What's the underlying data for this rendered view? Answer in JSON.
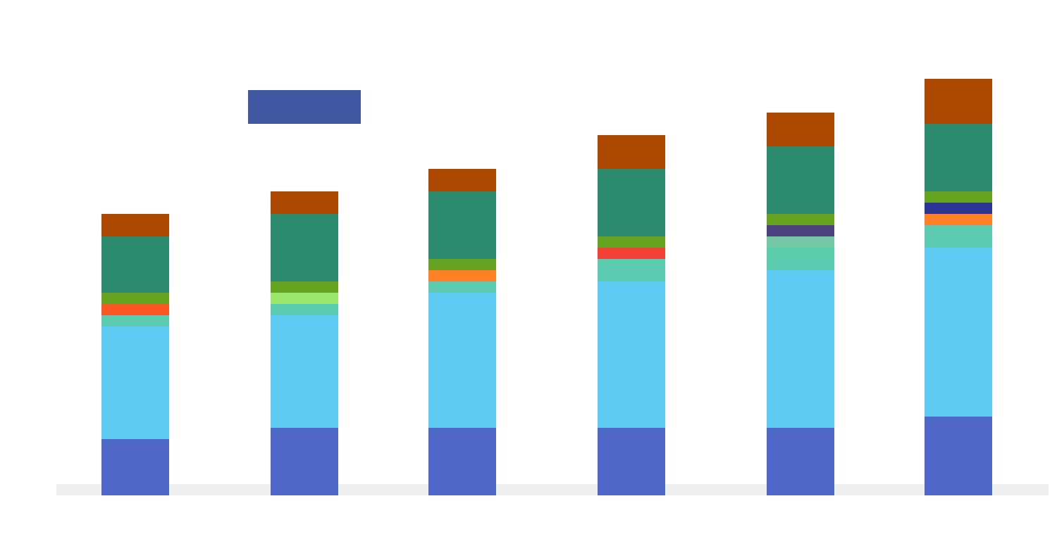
{
  "chart_data": {
    "type": "bar",
    "stacked": true,
    "title": "",
    "xlabel": "",
    "ylabel": "",
    "categories": [
      "",
      "",
      "",
      "",
      "",
      ""
    ],
    "ylim": [
      0,
      37
    ],
    "grid": false,
    "legend_position": "top-left",
    "series": [
      {
        "color": "#4f68c8",
        "values": [
          5,
          6,
          6,
          6,
          6,
          7
        ]
      },
      {
        "color": "#5ecbf2",
        "values": [
          10,
          10,
          12,
          13,
          14,
          15
        ]
      },
      {
        "color": "#5dceb0",
        "values": [
          1,
          1,
          1,
          2,
          1,
          2
        ]
      },
      {
        "color": "#9be66a",
        "values": [
          0,
          1,
          0,
          0,
          0,
          0
        ]
      },
      {
        "color": "#5dcfaf",
        "values": [
          0,
          0,
          0,
          0,
          1,
          0
        ]
      },
      {
        "color": "#72c8a4",
        "values": [
          0,
          0,
          0,
          0,
          1,
          0
        ]
      },
      {
        "color": "#ff5722",
        "values": [
          1,
          0,
          0,
          0,
          0,
          0
        ]
      },
      {
        "color": "#f44336",
        "values": [
          0,
          0,
          0,
          1,
          0,
          0
        ]
      },
      {
        "color": "#ff8022",
        "values": [
          0,
          0,
          1,
          0,
          0,
          1
        ]
      },
      {
        "color": "#4a4080",
        "values": [
          0,
          0,
          0,
          0,
          1,
          0
        ]
      },
      {
        "color": "#283593",
        "values": [
          0,
          0,
          0,
          0,
          0,
          1
        ]
      },
      {
        "color": "#66a61e",
        "values": [
          1,
          1,
          1,
          1,
          1,
          1
        ]
      },
      {
        "color": "#2a8a70",
        "values": [
          5,
          6,
          6,
          6,
          6,
          6
        ]
      },
      {
        "color": "#ad4a00",
        "values": [
          2,
          2,
          2,
          3,
          3,
          4
        ]
      }
    ],
    "legend": {
      "label": "",
      "button_label": "",
      "button_color": "#3d57a0"
    }
  }
}
